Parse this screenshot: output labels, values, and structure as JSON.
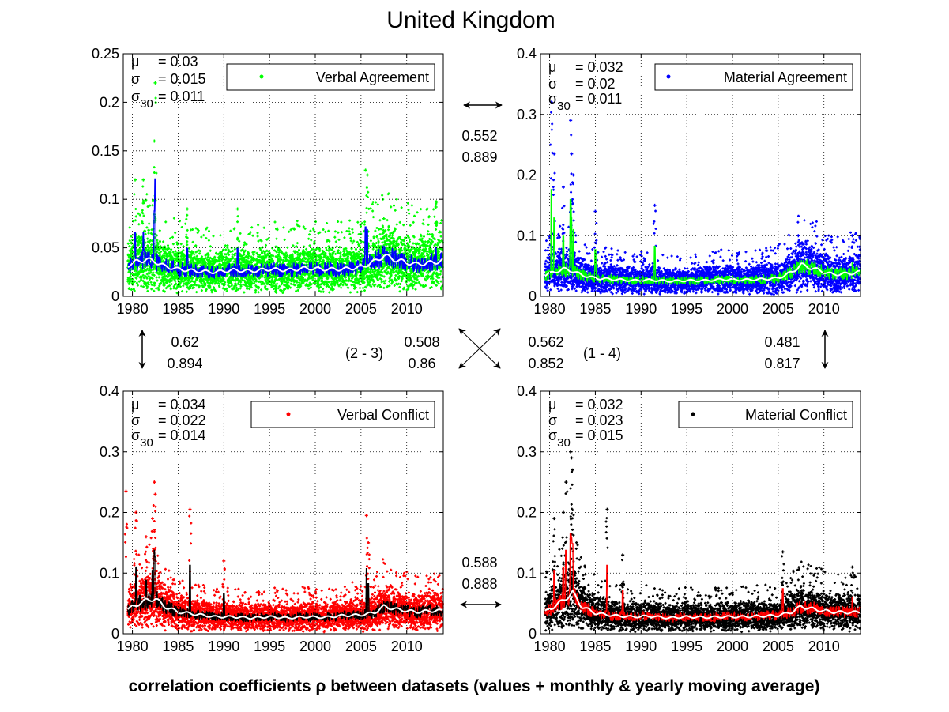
{
  "figure": {
    "title": "United Kingdom",
    "xlabel": "correlation coefficients ρ between datasets (values + monthly & yearly moving average)"
  },
  "chart_data": [
    {
      "type": "scatter",
      "legend": "Verbal Agreement",
      "legend_position": "top-right",
      "series_color": "#00ff00",
      "monthly_color": "#0000ff",
      "yearly_color": "#ffffff",
      "xlim": [
        1979,
        2014
      ],
      "ylim": [
        0,
        0.25
      ],
      "xticks": [
        "1980",
        "1985",
        "1990",
        "1995",
        "2000",
        "2005",
        "2010"
      ],
      "yticks": [
        "0",
        "0.05",
        "0.1",
        "0.15",
        "0.2",
        "0.25"
      ],
      "grid": true,
      "stats": {
        "mu": "0.03",
        "sigma": "0.015",
        "sigma30": "0.011"
      },
      "base_level": 0.03,
      "yearly_average": [
        [
          1979.5,
          0.032
        ],
        [
          1980.5,
          0.036
        ],
        [
          1981.5,
          0.038
        ],
        [
          1982.5,
          0.036
        ],
        [
          1983.5,
          0.031
        ],
        [
          1985,
          0.028
        ],
        [
          1987,
          0.026
        ],
        [
          1989,
          0.025
        ],
        [
          1991,
          0.027
        ],
        [
          1993,
          0.026
        ],
        [
          1995,
          0.028
        ],
        [
          1997,
          0.027
        ],
        [
          1999,
          0.029
        ],
        [
          2001,
          0.028
        ],
        [
          2003,
          0.028
        ],
        [
          2005,
          0.03
        ],
        [
          2006.5,
          0.036
        ],
        [
          2007.5,
          0.042
        ],
        [
          2009,
          0.037
        ],
        [
          2011,
          0.033
        ],
        [
          2013,
          0.035
        ],
        [
          2013.9,
          0.037
        ]
      ],
      "spikes": [
        [
          1980.3,
          0.12
        ],
        [
          1981.2,
          0.12
        ],
        [
          1982.4,
          0.16
        ],
        [
          1982.5,
          0.22
        ],
        [
          1986,
          0.09
        ],
        [
          1991.5,
          0.09
        ],
        [
          2005.5,
          0.13
        ],
        [
          2005.7,
          0.125
        ],
        [
          2007.5,
          0.08
        ],
        [
          2013.2,
          0.092
        ]
      ]
    },
    {
      "type": "scatter",
      "legend": "Material Agreement",
      "legend_position": "top-right",
      "series_color": "#0000ff",
      "monthly_color": "#00ff00",
      "yearly_color": "#ffffff",
      "xlim": [
        1979,
        2014
      ],
      "ylim": [
        0,
        0.4
      ],
      "xticks": [
        "1980",
        "1985",
        "1990",
        "1995",
        "2000",
        "2005",
        "2010"
      ],
      "yticks": [
        "0",
        "0.1",
        "0.2",
        "0.3",
        "0.4"
      ],
      "grid": true,
      "stats": {
        "mu": "0.032",
        "sigma": "0.02",
        "sigma30": "0.011"
      },
      "base_level": 0.032,
      "yearly_average": [
        [
          1979.5,
          0.035
        ],
        [
          1980.5,
          0.04
        ],
        [
          1981.5,
          0.045
        ],
        [
          1982.5,
          0.042
        ],
        [
          1983.5,
          0.035
        ],
        [
          1985,
          0.03
        ],
        [
          1987,
          0.028
        ],
        [
          1989,
          0.026
        ],
        [
          1991,
          0.027
        ],
        [
          1993,
          0.025
        ],
        [
          1995,
          0.026
        ],
        [
          1997,
          0.026
        ],
        [
          1999,
          0.028
        ],
        [
          2001,
          0.027
        ],
        [
          2003,
          0.028
        ],
        [
          2005,
          0.03
        ],
        [
          2006.5,
          0.04
        ],
        [
          2007.5,
          0.052
        ],
        [
          2009,
          0.045
        ],
        [
          2011,
          0.036
        ],
        [
          2013,
          0.038
        ],
        [
          2013.9,
          0.04
        ]
      ],
      "spikes": [
        [
          1980.2,
          0.32
        ],
        [
          1980.5,
          0.235
        ],
        [
          1982.3,
          0.29
        ],
        [
          1982.4,
          0.235
        ],
        [
          1982.6,
          0.2
        ],
        [
          1981.5,
          0.18
        ],
        [
          1985,
          0.14
        ],
        [
          1991.5,
          0.15
        ],
        [
          2007.2,
          0.1
        ],
        [
          2013.1,
          0.1
        ]
      ]
    },
    {
      "type": "scatter",
      "legend": "Verbal Conflict",
      "legend_position": "top-right",
      "series_color": "#ff0000",
      "monthly_color": "#000000",
      "yearly_color": "#ffffff",
      "xlim": [
        1979,
        2014
      ],
      "ylim": [
        0,
        0.4
      ],
      "xticks": [
        "1980",
        "1985",
        "1990",
        "1995",
        "2000",
        "2005",
        "2010"
      ],
      "yticks": [
        "0",
        "0.1",
        "0.2",
        "0.3",
        "0.4"
      ],
      "grid": true,
      "stats": {
        "mu": "0.034",
        "sigma": "0.022",
        "sigma30": "0.014"
      },
      "base_level": 0.034,
      "yearly_average": [
        [
          1979.5,
          0.04
        ],
        [
          1980.5,
          0.048
        ],
        [
          1981.5,
          0.055
        ],
        [
          1982.5,
          0.058
        ],
        [
          1983.5,
          0.045
        ],
        [
          1985,
          0.036
        ],
        [
          1987,
          0.032
        ],
        [
          1989,
          0.028
        ],
        [
          1991,
          0.028
        ],
        [
          1993,
          0.026
        ],
        [
          1995,
          0.028
        ],
        [
          1997,
          0.026
        ],
        [
          1999,
          0.028
        ],
        [
          2001,
          0.027
        ],
        [
          2003,
          0.03
        ],
        [
          2005,
          0.031
        ],
        [
          2006.5,
          0.035
        ],
        [
          2007.5,
          0.045
        ],
        [
          2009,
          0.04
        ],
        [
          2011,
          0.036
        ],
        [
          2013,
          0.038
        ],
        [
          2013.9,
          0.038
        ]
      ],
      "spikes": [
        [
          1979.3,
          0.235
        ],
        [
          1980.4,
          0.2
        ],
        [
          1982.4,
          0.25
        ],
        [
          1982.5,
          0.23
        ],
        [
          1982.2,
          0.19
        ],
        [
          1981.5,
          0.16
        ],
        [
          1986.3,
          0.205
        ],
        [
          1990,
          0.12
        ],
        [
          2005.6,
          0.195
        ],
        [
          2005.8,
          0.15
        ]
      ]
    },
    {
      "type": "scatter",
      "legend": "Material Conflict",
      "legend_position": "top-right",
      "series_color": "#000000",
      "monthly_color": "#ff0000",
      "yearly_color": "#ffffff",
      "xlim": [
        1979,
        2014
      ],
      "ylim": [
        0,
        0.4
      ],
      "xticks": [
        "1980",
        "1985",
        "1990",
        "1995",
        "2000",
        "2005",
        "2010"
      ],
      "yticks": [
        "0",
        "0.1",
        "0.2",
        "0.3",
        "0.4"
      ],
      "grid": true,
      "stats": {
        "mu": "0.032",
        "sigma": "0.023",
        "sigma30": "0.015"
      },
      "base_level": 0.032,
      "yearly_average": [
        [
          1979.5,
          0.036
        ],
        [
          1980.5,
          0.045
        ],
        [
          1981.5,
          0.055
        ],
        [
          1982.5,
          0.068
        ],
        [
          1983.5,
          0.045
        ],
        [
          1985,
          0.034
        ],
        [
          1987,
          0.03
        ],
        [
          1989,
          0.028
        ],
        [
          1991,
          0.029
        ],
        [
          1993,
          0.026
        ],
        [
          1995,
          0.028
        ],
        [
          1997,
          0.027
        ],
        [
          1999,
          0.028
        ],
        [
          2001,
          0.028
        ],
        [
          2003,
          0.029
        ],
        [
          2005,
          0.03
        ],
        [
          2006.5,
          0.036
        ],
        [
          2007.5,
          0.045
        ],
        [
          2009,
          0.04
        ],
        [
          2011,
          0.036
        ],
        [
          2013,
          0.035
        ],
        [
          2013.9,
          0.036
        ]
      ],
      "spikes": [
        [
          1982.3,
          0.3
        ],
        [
          1982.4,
          0.29
        ],
        [
          1982.5,
          0.27
        ],
        [
          1981.8,
          0.25
        ],
        [
          1981.5,
          0.2
        ],
        [
          1980.5,
          0.19
        ],
        [
          1986.3,
          0.205
        ],
        [
          1988,
          0.13
        ],
        [
          2005.5,
          0.135
        ],
        [
          2013.1,
          0.11
        ]
      ]
    }
  ],
  "correlations": {
    "top": {
      "value": "0.552",
      "smoothed": "0.889"
    },
    "bottom": {
      "value": "0.588",
      "smoothed": "0.888"
    },
    "left": {
      "value": "0.62",
      "smoothed": "0.894"
    },
    "right": {
      "value": "0.481",
      "smoothed": "0.817"
    },
    "diag_2_3": {
      "label": "(2 - 3)",
      "value": "0.508",
      "smoothed": "0.86"
    },
    "diag_1_4": {
      "label": "(1 - 4)",
      "value": "0.562",
      "smoothed": "0.852"
    }
  }
}
